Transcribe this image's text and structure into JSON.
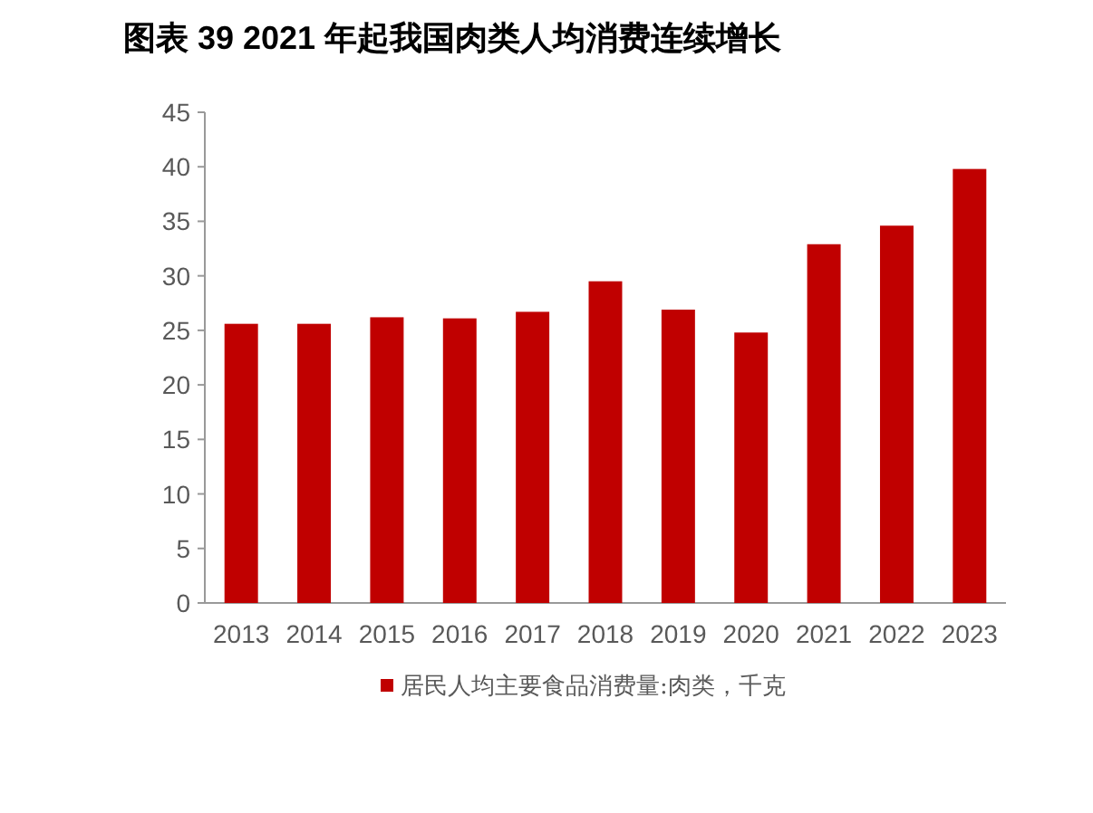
{
  "chart_data": {
    "type": "bar",
    "title": "图表 39 2021 年起我国肉类人均消费连续增长",
    "categories": [
      "2013",
      "2014",
      "2015",
      "2016",
      "2017",
      "2018",
      "2019",
      "2020",
      "2021",
      "2022",
      "2023"
    ],
    "series": [
      {
        "name": "居民人均主要食品消费量:肉类，千克",
        "color": "#c00000",
        "values": [
          25.6,
          25.6,
          26.2,
          26.1,
          26.7,
          29.5,
          26.9,
          24.8,
          32.9,
          34.6,
          39.8
        ]
      }
    ],
    "ylim": [
      0,
      45
    ],
    "yticks": [
      0,
      5,
      10,
      15,
      20,
      25,
      30,
      35,
      40,
      45
    ],
    "legend": "bottom"
  }
}
